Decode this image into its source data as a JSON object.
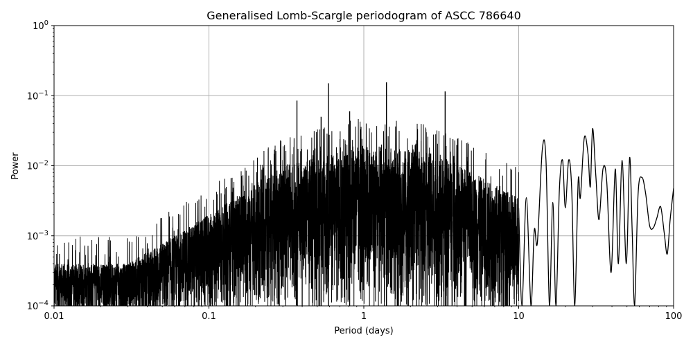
{
  "chart_data": {
    "type": "line",
    "title": "Generalised Lomb-Scargle periodogram of ASCC 786640",
    "xlabel": "Period (days)",
    "ylabel": "Power",
    "xscale": "log",
    "yscale": "log",
    "xlim": [
      0.01,
      100
    ],
    "ylim": [
      0.0001,
      1
    ],
    "grid": true,
    "legend": null,
    "line_color": "#000000",
    "x_ticks": [
      {
        "value": 0.01,
        "label": "0.01"
      },
      {
        "value": 0.1,
        "label": "0.1"
      },
      {
        "value": 1,
        "label": "1"
      },
      {
        "value": 10,
        "label": "10"
      },
      {
        "value": 100,
        "label": "100"
      }
    ],
    "y_ticks": [
      {
        "value": 0.0001,
        "base": "10",
        "exp": "−4"
      },
      {
        "value": 0.001,
        "base": "10",
        "exp": "−3"
      },
      {
        "value": 0.01,
        "base": "10",
        "exp": "−2"
      },
      {
        "value": 0.1,
        "base": "10",
        "exp": "−1"
      },
      {
        "value": 1,
        "base": "10",
        "exp": "0"
      }
    ],
    "notable_peaks": [
      {
        "period": 0.37,
        "power": 0.085
      },
      {
        "period": 0.59,
        "power": 0.15
      },
      {
        "period": 1.4,
        "power": 0.155
      },
      {
        "period": 3.35,
        "power": 0.115
      },
      {
        "period": 0.53,
        "power": 0.05
      },
      {
        "period": 0.81,
        "power": 0.06
      },
      {
        "period": 14.2,
        "power": 0.017
      },
      {
        "period": 26.5,
        "power": 0.025
      },
      {
        "period": 30.0,
        "power": 0.034
      },
      {
        "period": 46.0,
        "power": 0.012
      },
      {
        "period": 53.0,
        "power": 0.013
      },
      {
        "period": 63.0,
        "power": 0.0068
      },
      {
        "period": 83.0,
        "power": 0.0026
      }
    ],
    "noise_envelope": [
      {
        "period": 0.01,
        "upper": 0.0004,
        "floor": 0.0001
      },
      {
        "period": 0.03,
        "upper": 0.0004,
        "floor": 0.0001
      },
      {
        "period": 0.1,
        "upper": 0.002,
        "floor": 0.0001
      },
      {
        "period": 0.3,
        "upper": 0.01,
        "floor": 0.0001
      },
      {
        "period": 1.0,
        "upper": 0.02,
        "floor": 0.0001
      },
      {
        "period": 3.0,
        "upper": 0.015,
        "floor": 0.0001
      },
      {
        "period": 9.0,
        "upper": 0.004,
        "floor": 0.0001
      }
    ],
    "smooth_tail": {
      "x": [
        10,
        10.5,
        11.2,
        12.0,
        12.6,
        13.2,
        14.2,
        15.0,
        15.8,
        16.6,
        17.4,
        18.3,
        19.2,
        20.0,
        21.0,
        22.0,
        23.0,
        24.2,
        25.0,
        26.5,
        28.0,
        29.0,
        30.0,
        31.5,
        33.0,
        35.0,
        37.0,
        39.5,
        42.0,
        44.0,
        46.5,
        49.5,
        52.0,
        54.0,
        56.0,
        59.0,
        62.5,
        66.0,
        70.0,
        74.0,
        78.0,
        82.5,
        87.0,
        91.0,
        95.0,
        100.0
      ],
      "y": [
        0.0025,
        0.0001,
        0.0035,
        0.0001,
        0.0012,
        0.0008,
        0.017,
        0.012,
        0.0001,
        0.003,
        0.0001,
        0.0045,
        0.012,
        0.0025,
        0.012,
        0.0045,
        0.0001,
        0.006,
        0.0035,
        0.025,
        0.015,
        0.005,
        0.034,
        0.007,
        0.0017,
        0.009,
        0.006,
        0.0003,
        0.009,
        0.0004,
        0.012,
        0.0004,
        0.013,
        0.0012,
        0.0001,
        0.004,
        0.0068,
        0.004,
        0.0014,
        0.0013,
        0.0018,
        0.0026,
        0.0011,
        0.00055,
        0.0017,
        0.0048
      ]
    }
  }
}
